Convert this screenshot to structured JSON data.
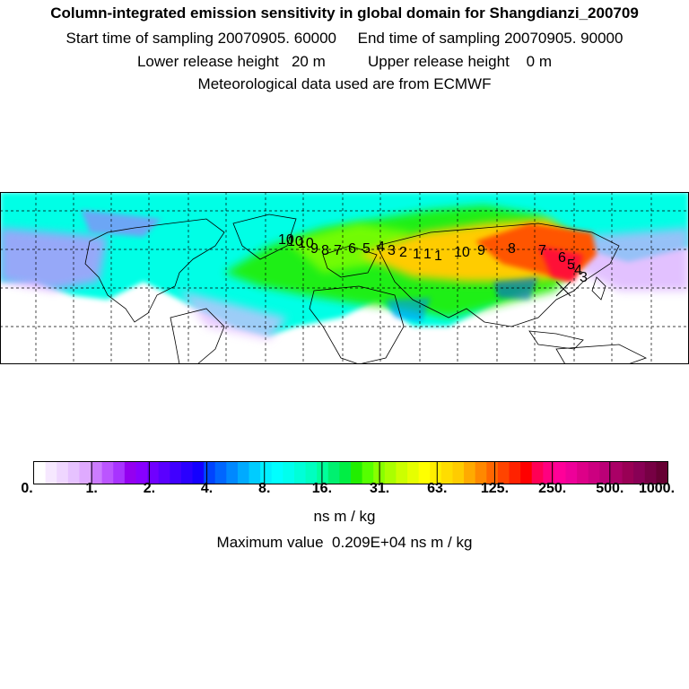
{
  "header": {
    "title": "Column-integrated emission sensitivity in global domain for Shangdianzi_200709",
    "sampling": "Start time of sampling 20070905. 60000     End time of sampling 20070905. 90000",
    "release": "Lower release height   20 m          Upper release height    0 m",
    "met": "Meteorological data used are from ECMWF"
  },
  "map": {
    "trajectory_labels": [
      "10",
      "10",
      "10",
      "9",
      "8",
      "7",
      "6",
      "5",
      "4",
      "3",
      "2",
      "1",
      "1",
      "1",
      "10",
      "9",
      "8",
      "7",
      "6",
      "5",
      "4",
      "3"
    ],
    "field_colors": {
      "background": "#00ffe6",
      "low": "#b46cff",
      "mid": "#22ee00",
      "high": "#ffcc00",
      "peak": "#ff5500"
    }
  },
  "colorbar": {
    "tick_labels": [
      "0.",
      "1.",
      "2.",
      "4.",
      "8.",
      "16.",
      "31.",
      "63.",
      "125.",
      "250.",
      "500.",
      "1000."
    ],
    "colors": [
      "#ffffff",
      "#f6e8ff",
      "#efd6ff",
      "#e6c2ff",
      "#dfaaff",
      "#cc7cff",
      "#bb55ff",
      "#a833ff",
      "#9400f0",
      "#8800ff",
      "#7000ff",
      "#5a00ff",
      "#4000ff",
      "#2a00ff",
      "#1400ff",
      "#0044ff",
      "#0066ff",
      "#0088ff",
      "#00aaff",
      "#00ccff",
      "#00f0ff",
      "#00ffff",
      "#00ffee",
      "#00ffd8",
      "#00ffc0",
      "#00ff9a",
      "#00f070",
      "#00ee44",
      "#22ee00",
      "#55ff00",
      "#88ff00",
      "#aaff00",
      "#ccff00",
      "#e6ff00",
      "#ffff00",
      "#ffee00",
      "#ffdd00",
      "#ffcc00",
      "#ffaa00",
      "#ff8800",
      "#ff6600",
      "#ff4400",
      "#ff2200",
      "#ff0000",
      "#ff0055",
      "#ff0080",
      "#ff0099",
      "#ee0099",
      "#dd0088",
      "#cc0080",
      "#bb0077",
      "#aa0066",
      "#990055",
      "#880055",
      "#770044",
      "#660033"
    ],
    "unit": "ns m / kg",
    "max_value": "Maximum value  0.209E+04 ns m / kg"
  }
}
